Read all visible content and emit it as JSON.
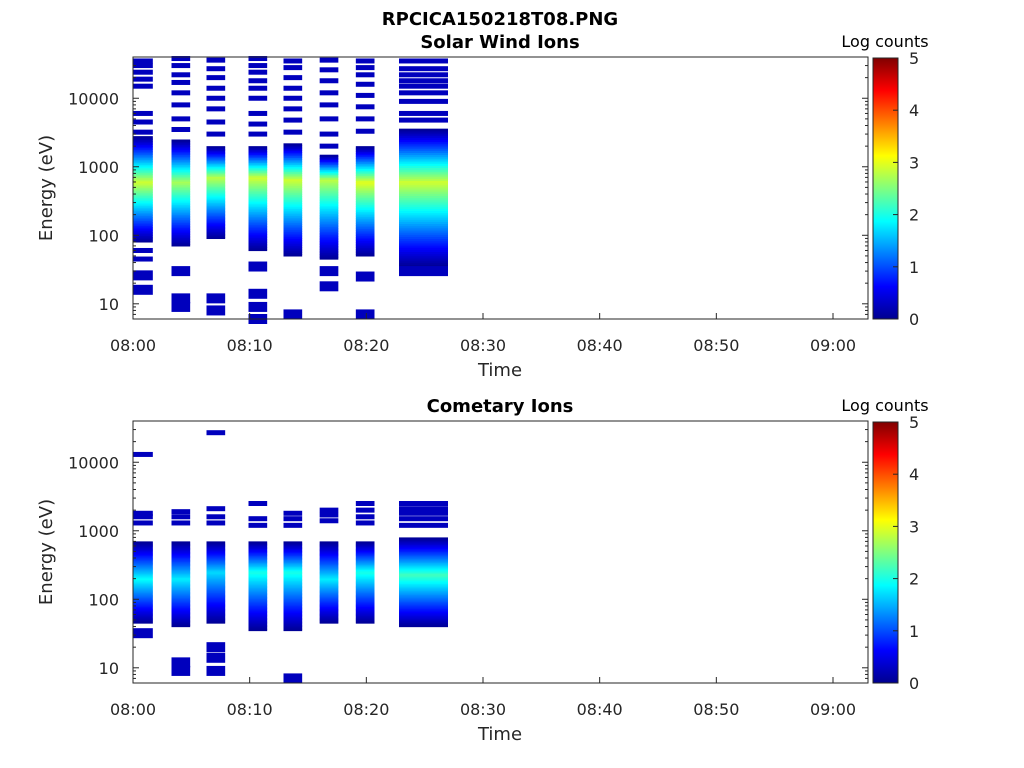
{
  "figure": {
    "title": "RPCICA150218T08.PNG"
  },
  "colorscale": "jet",
  "chart_data": [
    {
      "type": "heatmap",
      "title": "Solar Wind Ions",
      "xlabel": "Time",
      "ylabel": "Energy (eV)",
      "x_ticks": [
        "08:00",
        "08:10",
        "08:20",
        "08:30",
        "08:40",
        "08:50",
        "09:00"
      ],
      "x_range_minutes": [
        0,
        63
      ],
      "y_scale": "log",
      "y_range_eV": [
        6,
        40000
      ],
      "y_ticks": [
        10,
        100,
        1000,
        10000
      ],
      "y_tick_labels": [
        "10",
        "100",
        "1000",
        "10000"
      ],
      "colorbar": {
        "title": "Log counts",
        "range": [
          0,
          5
        ],
        "ticks": [
          "0",
          "1",
          "2",
          "3",
          "4",
          "5"
        ]
      },
      "columns": [
        {
          "t_start_min": 0.0,
          "t_end_min": 1.7,
          "peak_log_counts": 2.9,
          "peak_energy_eV": 600,
          "core_low_eV": 80,
          "core_high_eV": 2800,
          "sparse_energies_eV": [
            35000,
            30000,
            24000,
            19000,
            15000,
            6000,
            4500,
            3200,
            60,
            45,
            26,
            16
          ]
        },
        {
          "t_start_min": 3.3,
          "t_end_min": 4.9,
          "peak_log_counts": 2.7,
          "peak_energy_eV": 600,
          "core_low_eV": 70,
          "core_high_eV": 2500,
          "sparse_energies_eV": [
            38000,
            30000,
            22000,
            17000,
            12000,
            8000,
            5000,
            3500,
            30,
            12,
            9
          ]
        },
        {
          "t_start_min": 6.3,
          "t_end_min": 7.9,
          "peak_log_counts": 2.8,
          "peak_energy_eV": 700,
          "core_low_eV": 90,
          "core_high_eV": 2000,
          "sparse_energies_eV": [
            36000,
            27000,
            20000,
            14000,
            10000,
            7000,
            4500,
            3000,
            12,
            8
          ]
        },
        {
          "t_start_min": 9.9,
          "t_end_min": 11.5,
          "peak_log_counts": 2.9,
          "peak_energy_eV": 700,
          "core_low_eV": 60,
          "core_high_eV": 2000,
          "sparse_energies_eV": [
            38000,
            30000,
            24000,
            18000,
            14000,
            10000,
            6000,
            4200,
            3000,
            35,
            14,
            9,
            6
          ]
        },
        {
          "t_start_min": 12.9,
          "t_end_min": 14.5,
          "peak_log_counts": 2.9,
          "peak_energy_eV": 650,
          "core_low_eV": 50,
          "core_high_eV": 2200,
          "sparse_energies_eV": [
            35000,
            28000,
            20000,
            14000,
            10000,
            7000,
            4800,
            3200,
            7
          ]
        },
        {
          "t_start_min": 16.0,
          "t_end_min": 17.6,
          "peak_log_counts": 2.8,
          "peak_energy_eV": 650,
          "core_low_eV": 45,
          "core_high_eV": 1500,
          "sparse_energies_eV": [
            36000,
            26000,
            18000,
            12000,
            8000,
            5000,
            3000,
            2000,
            30,
            18
          ]
        },
        {
          "t_start_min": 19.1,
          "t_end_min": 20.7,
          "peak_log_counts": 3.0,
          "peak_energy_eV": 600,
          "core_low_eV": 50,
          "core_high_eV": 2000,
          "sparse_energies_eV": [
            35000,
            28000,
            22000,
            16000,
            11000,
            7500,
            5000,
            3300,
            25,
            7
          ]
        },
        {
          "t_start_min": 22.8,
          "t_end_min": 27.0,
          "peak_log_counts": 2.9,
          "peak_energy_eV": 600,
          "core_low_eV": 35,
          "core_high_eV": 3600,
          "sparse_energies_eV": [
            35000,
            27000,
            22000,
            18000,
            15000,
            12000,
            9000,
            6000,
            4800,
            30
          ]
        }
      ]
    },
    {
      "type": "heatmap",
      "title": "Cometary Ions",
      "xlabel": "Time",
      "ylabel": "Energy (eV)",
      "x_ticks": [
        "08:00",
        "08:10",
        "08:20",
        "08:30",
        "08:40",
        "08:50",
        "09:00"
      ],
      "x_range_minutes": [
        0,
        63
      ],
      "y_scale": "log",
      "y_range_eV": [
        6,
        40000
      ],
      "y_ticks": [
        10,
        100,
        1000,
        10000
      ],
      "y_tick_labels": [
        "10",
        "100",
        "1000",
        "10000"
      ],
      "colorbar": {
        "title": "Log counts",
        "range": [
          0,
          5
        ],
        "ticks": [
          "0",
          "1",
          "2",
          "3",
          "4",
          "5"
        ]
      },
      "columns": [
        {
          "t_start_min": 0.0,
          "t_end_min": 1.7,
          "peak_log_counts": 1.9,
          "peak_energy_eV": 200,
          "core_low_eV": 45,
          "core_high_eV": 700,
          "sparse_energies_eV": [
            13000,
            1800,
            1600,
            1300,
            32
          ]
        },
        {
          "t_start_min": 3.3,
          "t_end_min": 4.9,
          "peak_log_counts": 1.8,
          "peak_energy_eV": 200,
          "core_low_eV": 40,
          "core_high_eV": 700,
          "sparse_energies_eV": [
            1900,
            1600,
            1300,
            12,
            9
          ]
        },
        {
          "t_start_min": 6.3,
          "t_end_min": 7.9,
          "peak_log_counts": 1.7,
          "peak_energy_eV": 250,
          "core_low_eV": 45,
          "core_high_eV": 700,
          "sparse_energies_eV": [
            27000,
            2100,
            1600,
            1300,
            20,
            14,
            9
          ]
        },
        {
          "t_start_min": 9.9,
          "t_end_min": 11.5,
          "peak_log_counts": 2.0,
          "peak_energy_eV": 250,
          "core_low_eV": 35,
          "core_high_eV": 700,
          "sparse_energies_eV": [
            2500,
            1500,
            1200
          ]
        },
        {
          "t_start_min": 12.9,
          "t_end_min": 14.5,
          "peak_log_counts": 2.0,
          "peak_energy_eV": 250,
          "core_low_eV": 35,
          "core_high_eV": 700,
          "sparse_energies_eV": [
            1800,
            1500,
            1200,
            7
          ]
        },
        {
          "t_start_min": 16.0,
          "t_end_min": 17.6,
          "peak_log_counts": 1.8,
          "peak_energy_eV": 200,
          "core_low_eV": 45,
          "core_high_eV": 700,
          "sparse_energies_eV": [
            2000,
            1700,
            1400
          ]
        },
        {
          "t_start_min": 19.1,
          "t_end_min": 20.7,
          "peak_log_counts": 2.0,
          "peak_energy_eV": 250,
          "core_low_eV": 45,
          "core_high_eV": 700,
          "sparse_energies_eV": [
            2500,
            2000,
            1600,
            1300
          ]
        },
        {
          "t_start_min": 22.8,
          "t_end_min": 27.0,
          "peak_log_counts": 2.2,
          "peak_energy_eV": 230,
          "core_low_eV": 40,
          "core_high_eV": 800,
          "sparse_energies_eV": [
            2500,
            2100,
            1800,
            1500,
            1200
          ]
        }
      ]
    }
  ]
}
